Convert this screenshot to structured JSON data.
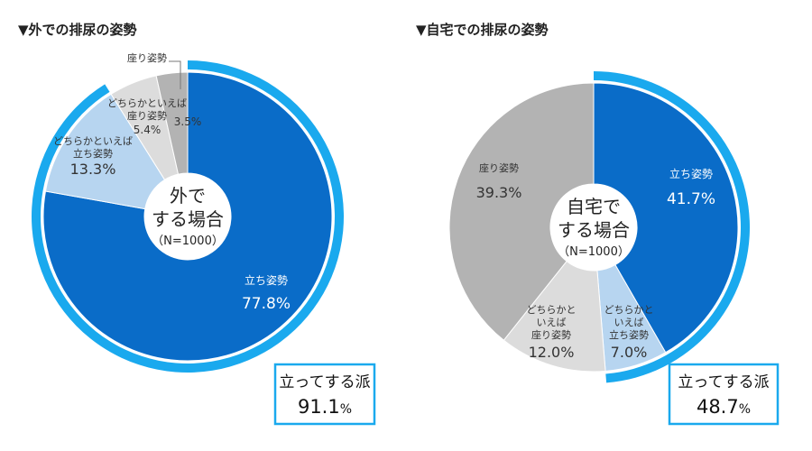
{
  "chart_data": [
    {
      "type": "pie",
      "title": "▼外での排尿の姿勢",
      "center": {
        "line1": "外で",
        "line2": "する場合",
        "line3": "（N=1000）"
      },
      "categories": [
        "立ち姿勢",
        "どちらかといえば立ち姿勢",
        "どちらかといえば座り姿勢",
        "座り姿勢"
      ],
      "values": [
        77.8,
        13.3,
        5.4,
        3.5
      ],
      "colors": [
        "#0a6cc8",
        "#b7d5f0",
        "#dcdcdc",
        "#b3b3b3"
      ],
      "labels": [
        {
          "lines": [
            "立ち姿勢"
          ],
          "value": "77.8%"
        },
        {
          "lines": [
            "どちらかといえば",
            "立ち姿勢"
          ],
          "value": "13.3%"
        },
        {
          "lines": [
            "どちらかといえば",
            "座り姿勢"
          ],
          "value": "5.4%"
        },
        {
          "lines": [
            "座り姿勢"
          ],
          "value": "3.5%"
        }
      ],
      "highlight": {
        "label": "立ってする派",
        "value": "91.1",
        "unit": "%",
        "share": 91.1,
        "color": "#1aa9ee"
      }
    },
    {
      "type": "pie",
      "title": "▼自宅での排尿の姿勢",
      "center": {
        "line1": "自宅で",
        "line2": "する場合",
        "line3": "（N=1000）"
      },
      "categories": [
        "立ち姿勢",
        "どちらかといえば立ち姿勢",
        "どちらかといえば座り姿勢",
        "座り姿勢"
      ],
      "values": [
        41.7,
        7.0,
        12.0,
        39.3
      ],
      "colors": [
        "#0a6cc8",
        "#b7d5f0",
        "#dcdcdc",
        "#b3b3b3"
      ],
      "labels": [
        {
          "lines": [
            "立ち姿勢"
          ],
          "value": "41.7%"
        },
        {
          "lines": [
            "どちらかと",
            "いえば",
            "立ち姿勢"
          ],
          "value": "7.0%"
        },
        {
          "lines": [
            "どちらかと",
            "いえば",
            "座り姿勢"
          ],
          "value": "12.0%"
        },
        {
          "lines": [
            "座り姿勢"
          ],
          "value": "39.3%"
        }
      ],
      "highlight": {
        "label": "立ってする派",
        "value": "48.7",
        "unit": "%",
        "share": 48.7,
        "color": "#1aa9ee"
      }
    }
  ]
}
